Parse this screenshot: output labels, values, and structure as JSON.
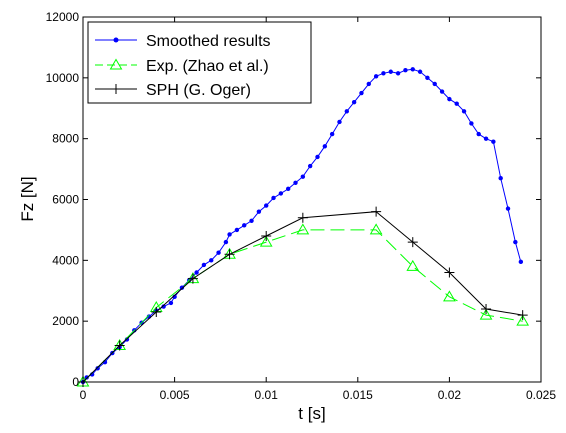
{
  "chart_data": {
    "type": "line",
    "title": "",
    "xlabel": "t  [s]",
    "ylabel": "Fz  [N]",
    "xlim": [
      0,
      0.025
    ],
    "ylim": [
      0,
      12000
    ],
    "xticks": [
      0,
      0.005,
      0.01,
      0.015,
      0.02,
      0.025
    ],
    "xtick_labels": [
      "0",
      "0.005",
      "0.01",
      "0.015",
      "0.02",
      "0.025"
    ],
    "yticks": [
      0,
      2000,
      4000,
      6000,
      8000,
      10000,
      12000
    ],
    "ytick_labels": [
      "0",
      "2000",
      "4000",
      "6000",
      "8000",
      "10000",
      "12000"
    ],
    "grid": false,
    "legend_position": "top-left",
    "series": [
      {
        "name": "Smoothed results",
        "color": "#0000ff",
        "marker": "dot",
        "dashed": false,
        "points": [
          [
            0,
            0
          ],
          [
            0.0002,
            150
          ],
          [
            0.0005,
            250
          ],
          [
            0.0008,
            450
          ],
          [
            0.0012,
            650
          ],
          [
            0.0016,
            950
          ],
          [
            0.002,
            1150
          ],
          [
            0.0024,
            1400
          ],
          [
            0.0028,
            1700
          ],
          [
            0.0032,
            1950
          ],
          [
            0.0036,
            2150
          ],
          [
            0.004,
            2350
          ],
          [
            0.0044,
            2480
          ],
          [
            0.0048,
            2600
          ],
          [
            0.005,
            2800
          ],
          [
            0.0054,
            3100
          ],
          [
            0.0058,
            3350
          ],
          [
            0.0062,
            3600
          ],
          [
            0.0066,
            3850
          ],
          [
            0.007,
            4000
          ],
          [
            0.0074,
            4250
          ],
          [
            0.0078,
            4600
          ],
          [
            0.008,
            4850
          ],
          [
            0.0084,
            5000
          ],
          [
            0.0088,
            5150
          ],
          [
            0.0092,
            5300
          ],
          [
            0.0096,
            5600
          ],
          [
            0.01,
            5800
          ],
          [
            0.0104,
            6050
          ],
          [
            0.0108,
            6200
          ],
          [
            0.0112,
            6350
          ],
          [
            0.0116,
            6550
          ],
          [
            0.012,
            6750
          ],
          [
            0.0124,
            7100
          ],
          [
            0.0128,
            7400
          ],
          [
            0.0132,
            7750
          ],
          [
            0.0136,
            8150
          ],
          [
            0.014,
            8550
          ],
          [
            0.0144,
            8900
          ],
          [
            0.0148,
            9200
          ],
          [
            0.0152,
            9500
          ],
          [
            0.0156,
            9800
          ],
          [
            0.016,
            10050
          ],
          [
            0.0164,
            10150
          ],
          [
            0.0168,
            10200
          ],
          [
            0.0172,
            10150
          ],
          [
            0.0176,
            10250
          ],
          [
            0.018,
            10280
          ],
          [
            0.0184,
            10200
          ],
          [
            0.0188,
            10000
          ],
          [
            0.0192,
            9800
          ],
          [
            0.0196,
            9550
          ],
          [
            0.02,
            9300
          ],
          [
            0.0204,
            9150
          ],
          [
            0.0208,
            8900
          ],
          [
            0.0212,
            8500
          ],
          [
            0.0216,
            8150
          ],
          [
            0.022,
            8000
          ],
          [
            0.0224,
            7900
          ],
          [
            0.0228,
            6700
          ],
          [
            0.0232,
            5700
          ],
          [
            0.0236,
            4600
          ],
          [
            0.0239,
            3950
          ]
        ]
      },
      {
        "name": "Exp. (Zhao et al.)",
        "color": "#00ff00",
        "marker": "triangle",
        "dashed": true,
        "points": [
          [
            0,
            0
          ],
          [
            0.002,
            1200
          ],
          [
            0.004,
            2450
          ],
          [
            0.006,
            3400
          ],
          [
            0.008,
            4200
          ],
          [
            0.01,
            4600
          ],
          [
            0.012,
            5000
          ],
          [
            0.016,
            5000
          ],
          [
            0.018,
            3800
          ],
          [
            0.02,
            2800
          ],
          [
            0.022,
            2200
          ],
          [
            0.024,
            2000
          ]
        ]
      },
      {
        "name": "SPH (G. Oger)",
        "color": "#000000",
        "marker": "plus",
        "dashed": false,
        "points": [
          [
            0,
            0
          ],
          [
            0.002,
            1200
          ],
          [
            0.004,
            2300
          ],
          [
            0.006,
            3400
          ],
          [
            0.008,
            4200
          ],
          [
            0.01,
            4800
          ],
          [
            0.012,
            5400
          ],
          [
            0.016,
            5600
          ],
          [
            0.018,
            4600
          ],
          [
            0.02,
            3600
          ],
          [
            0.022,
            2400
          ],
          [
            0.024,
            2200
          ]
        ]
      }
    ]
  }
}
